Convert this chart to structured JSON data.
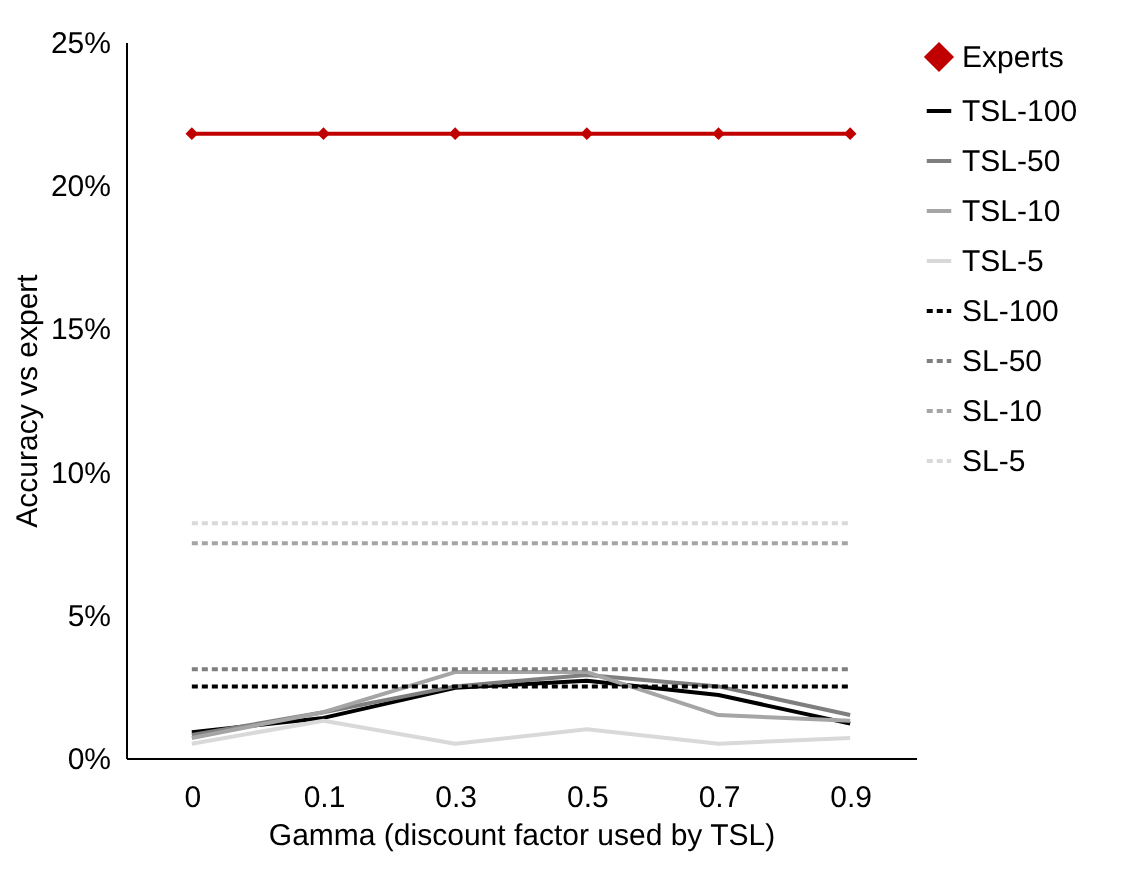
{
  "chart_data": {
    "type": "line",
    "xlabel": "Gamma (discount factor used by TSL)",
    "ylabel": "Accuracy vs expert",
    "categories": [
      "0",
      "0.1",
      "0.3",
      "0.5",
      "0.7",
      "0.9"
    ],
    "ylim": [
      0,
      25
    ],
    "yticks": [
      {
        "value": 0,
        "label": "0%"
      },
      {
        "value": 5,
        "label": "5%"
      },
      {
        "value": 10,
        "label": "10%"
      },
      {
        "value": 15,
        "label": "15%"
      },
      {
        "value": 20,
        "label": "20%"
      },
      {
        "value": 25,
        "label": "25%"
      }
    ],
    "grid": false,
    "legend": "right",
    "series": [
      {
        "name": "Experts",
        "color": "#c00000",
        "marker": "diamond",
        "line_style": "solid",
        "values": [
          21.8,
          21.8,
          21.8,
          21.8,
          21.8,
          21.8
        ]
      },
      {
        "name": "TSL-100",
        "color": "#000000",
        "line_style": "solid",
        "values": [
          0.9,
          1.4,
          2.45,
          2.7,
          2.2,
          1.2
        ]
      },
      {
        "name": "TSL-50",
        "color": "#7f7f7f",
        "line_style": "solid",
        "values": [
          0.8,
          1.6,
          2.5,
          2.9,
          2.5,
          1.5
        ]
      },
      {
        "name": "TSL-10",
        "color": "#a5a5a5",
        "line_style": "solid",
        "values": [
          0.7,
          1.6,
          3.0,
          3.0,
          1.5,
          1.3
        ]
      },
      {
        "name": "TSL-5",
        "color": "#d9d9d9",
        "line_style": "solid",
        "values": [
          0.5,
          1.3,
          0.5,
          1.0,
          0.5,
          0.7
        ]
      },
      {
        "name": "SL-100",
        "color": "#000000",
        "line_style": "dashed",
        "values": [
          2.5,
          2.5,
          2.5,
          2.5,
          2.5,
          2.5
        ]
      },
      {
        "name": "SL-50",
        "color": "#7f7f7f",
        "line_style": "dashed",
        "values": [
          3.1,
          3.1,
          3.1,
          3.1,
          3.1,
          3.1
        ]
      },
      {
        "name": "SL-10",
        "color": "#a5a5a5",
        "line_style": "dashed",
        "values": [
          7.5,
          7.5,
          7.5,
          7.5,
          7.5,
          7.5
        ]
      },
      {
        "name": "SL-5",
        "color": "#d9d9d9",
        "line_style": "dashed",
        "values": [
          8.2,
          8.2,
          8.2,
          8.2,
          8.2,
          8.2
        ]
      }
    ]
  }
}
